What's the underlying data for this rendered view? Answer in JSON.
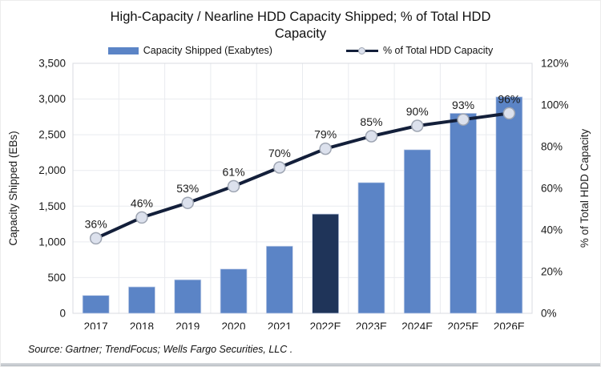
{
  "title": "High-Capacity / Nearline HDD Capacity Shipped; % of Total HDD Capacity",
  "legend": {
    "items": [
      {
        "label": "Capacity Shipped (Exabytes)"
      },
      {
        "label": "% of Total HDD Capacity"
      }
    ]
  },
  "source_note": "Source: Gartner; TrendFocus; Wells Fargo Securities, LLC .",
  "colors": {
    "bar": "#5B84C6",
    "bar_highlight": "#1F3459",
    "bar_stroke": "#C7D3EA",
    "line": "#131F3A",
    "marker_fill": "#DCE1ED",
    "marker_stroke": "#9EA5B2",
    "grid": "#E9EBEF",
    "plot_border": "#D8DBE0",
    "text": "#1A1A1A"
  },
  "chart_data": {
    "type": "combo-bar-line",
    "title": "High-Capacity / Nearline HDD Capacity Shipped; % of Total HDD Capacity",
    "categories": [
      "2017",
      "2018",
      "2019",
      "2020",
      "2021",
      "2022E",
      "2023E",
      "2024E",
      "2025E",
      "2026E"
    ],
    "series": [
      {
        "name": "Capacity Shipped (Exabytes)",
        "type": "bar",
        "axis": "left",
        "values": [
          250,
          370,
          470,
          620,
          940,
          1390,
          1830,
          2290,
          2800,
          3030
        ],
        "highlight_index": 5
      },
      {
        "name": "% of Total HDD Capacity",
        "type": "line",
        "axis": "right",
        "values": [
          36,
          46,
          53,
          61,
          70,
          79,
          85,
          90,
          93,
          96
        ],
        "point_labels": [
          "36%",
          "46%",
          "53%",
          "61%",
          "70%",
          "79%",
          "85%",
          "90%",
          "93%",
          "96%"
        ]
      }
    ],
    "left_axis": {
      "title": "Capacity Shipped (EBs)",
      "min": 0,
      "max": 3500,
      "step": 500,
      "tick_labels": [
        "0",
        "500",
        "1,000",
        "1,500",
        "2,000",
        "2,500",
        "3,000",
        "3,500"
      ]
    },
    "right_axis": {
      "title": "% of Total HDD Capacity",
      "min": 0,
      "max": 120,
      "step": 20,
      "tick_labels": [
        "0%",
        "20%",
        "40%",
        "60%",
        "80%",
        "100%",
        "120%"
      ]
    },
    "grid": true,
    "legend_position": "top"
  }
}
